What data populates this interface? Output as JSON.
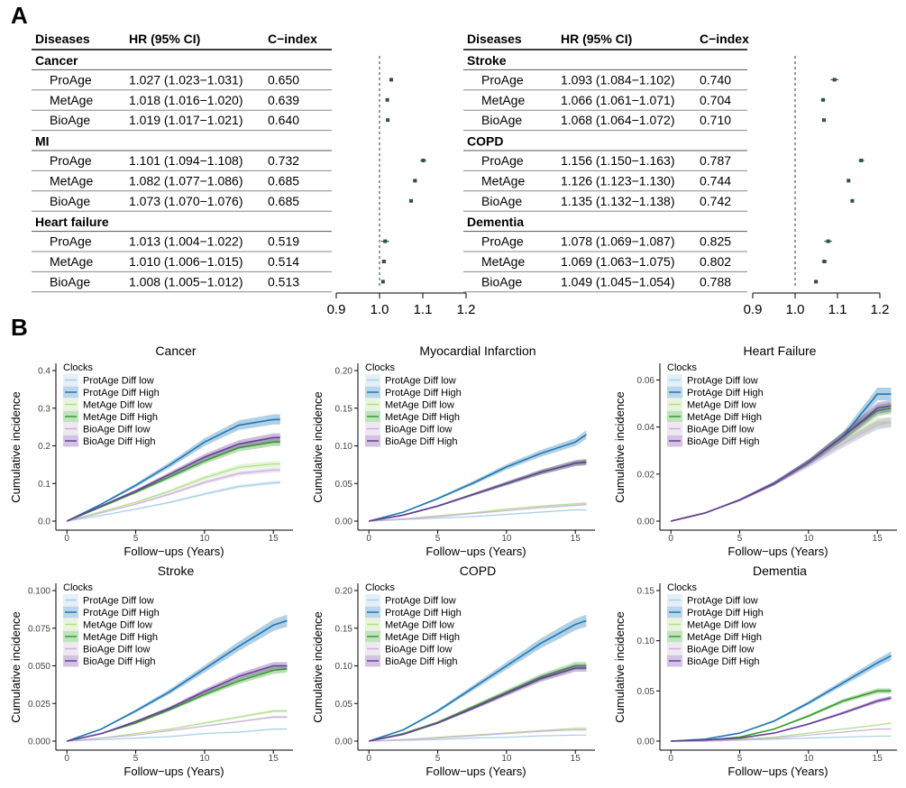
{
  "panel_labels": {
    "a": "A",
    "b": "B"
  },
  "chart_data": [
    {
      "type": "table",
      "name": "forest-left",
      "columns": [
        "Diseases",
        "HR (95% CI)",
        "C−index"
      ],
      "axis_ticks": [
        0.9,
        1.0,
        1.1,
        1.2
      ],
      "reference_line": 1.0,
      "groups": [
        {
          "disease": "Cancer",
          "rows": [
            {
              "clock": "ProAge",
              "hr_text": "1.027 (1.023−1.031)",
              "cindex": "0.650",
              "hr": 1.027,
              "lo": 1.023,
              "hi": 1.031
            },
            {
              "clock": "MetAge",
              "hr_text": "1.018 (1.016−1.020)",
              "cindex": "0.639",
              "hr": 1.018,
              "lo": 1.016,
              "hi": 1.02
            },
            {
              "clock": "BioAge",
              "hr_text": "1.019 (1.017−1.021)",
              "cindex": "0.640",
              "hr": 1.019,
              "lo": 1.017,
              "hi": 1.021
            }
          ]
        },
        {
          "disease": "MI",
          "rows": [
            {
              "clock": "ProAge",
              "hr_text": "1.101 (1.094−1.108)",
              "cindex": "0.732",
              "hr": 1.101,
              "lo": 1.094,
              "hi": 1.108
            },
            {
              "clock": "MetAge",
              "hr_text": "1.082 (1.077−1.086)",
              "cindex": "0.685",
              "hr": 1.082,
              "lo": 1.077,
              "hi": 1.086
            },
            {
              "clock": "BioAge",
              "hr_text": "1.073 (1.070−1.076)",
              "cindex": "0.685",
              "hr": 1.073,
              "lo": 1.07,
              "hi": 1.076
            }
          ]
        },
        {
          "disease": "Heart failure",
          "rows": [
            {
              "clock": "ProAge",
              "hr_text": "1.013 (1.004−1.022)",
              "cindex": "0.519",
              "hr": 1.013,
              "lo": 1.004,
              "hi": 1.022
            },
            {
              "clock": "MetAge",
              "hr_text": "1.010 (1.006−1.015)",
              "cindex": "0.514",
              "hr": 1.01,
              "lo": 1.006,
              "hi": 1.015
            },
            {
              "clock": "BioAge",
              "hr_text": "1.008 (1.005−1.012)",
              "cindex": "0.513",
              "hr": 1.008,
              "lo": 1.005,
              "hi": 1.012
            }
          ]
        }
      ]
    },
    {
      "type": "table",
      "name": "forest-right",
      "columns": [
        "Diseases",
        "HR (95% CI)",
        "C−index"
      ],
      "axis_ticks": [
        0.9,
        1.0,
        1.1,
        1.2
      ],
      "reference_line": 1.0,
      "groups": [
        {
          "disease": "Stroke",
          "rows": [
            {
              "clock": "ProAge",
              "hr_text": "1.093 (1.084−1.102)",
              "cindex": "0.740",
              "hr": 1.093,
              "lo": 1.084,
              "hi": 1.102
            },
            {
              "clock": "MetAge",
              "hr_text": "1.066 (1.061−1.071)",
              "cindex": "0.704",
              "hr": 1.066,
              "lo": 1.061,
              "hi": 1.071
            },
            {
              "clock": "BioAge",
              "hr_text": "1.068 (1.064−1.072)",
              "cindex": "0.710",
              "hr": 1.068,
              "lo": 1.064,
              "hi": 1.072
            }
          ]
        },
        {
          "disease": "COPD",
          "rows": [
            {
              "clock": "ProAge",
              "hr_text": "1.156 (1.150−1.163)",
              "cindex": "0.787",
              "hr": 1.156,
              "lo": 1.15,
              "hi": 1.163
            },
            {
              "clock": "MetAge",
              "hr_text": "1.126 (1.123−1.130)",
              "cindex": "0.744",
              "hr": 1.126,
              "lo": 1.123,
              "hi": 1.13
            },
            {
              "clock": "BioAge",
              "hr_text": "1.135 (1.132−1.138)",
              "cindex": "0.742",
              "hr": 1.135,
              "lo": 1.132,
              "hi": 1.138
            }
          ]
        },
        {
          "disease": "Dementia",
          "rows": [
            {
              "clock": "ProAge",
              "hr_text": "1.078 (1.069−1.087)",
              "cindex": "0.825",
              "hr": 1.078,
              "lo": 1.069,
              "hi": 1.087
            },
            {
              "clock": "MetAge",
              "hr_text": "1.069 (1.063−1.075)",
              "cindex": "0.802",
              "hr": 1.069,
              "lo": 1.063,
              "hi": 1.075
            },
            {
              "clock": "BioAge",
              "hr_text": "1.049 (1.045−1.054)",
              "cindex": "0.788",
              "hr": 1.049,
              "lo": 1.045,
              "hi": 1.054
            }
          ]
        }
      ]
    },
    {
      "type": "line",
      "title": "Cancer",
      "xlabel": "Follow−ups (Years)",
      "ylabel": "Cumulative incidence",
      "legend_title": "Clocks",
      "legend": "top-left",
      "x": [
        0,
        2.5,
        5,
        7.5,
        10,
        12.5,
        15,
        15.5
      ],
      "xticks": [
        0,
        5,
        10,
        15
      ],
      "yticks": [
        "0.0",
        "0.1",
        "0.2",
        "0.3",
        "0.4"
      ],
      "ylim": [
        0,
        0.4
      ],
      "series": [
        {
          "name": "ProtAge Diff low",
          "color": "#a6cee3",
          "values": [
            0,
            0.015,
            0.032,
            0.05,
            0.072,
            0.092,
            0.102,
            0.103
          ]
        },
        {
          "name": "ProtAge Diff High",
          "color": "#1f78b4",
          "values": [
            0,
            0.045,
            0.095,
            0.15,
            0.21,
            0.255,
            0.27,
            0.27
          ]
        },
        {
          "name": "MetAge Diff low",
          "color": "#b2df8a",
          "values": [
            0,
            0.025,
            0.05,
            0.08,
            0.115,
            0.143,
            0.152,
            0.152
          ]
        },
        {
          "name": "MetAge Diff High",
          "color": "#33a02c",
          "values": [
            0,
            0.038,
            0.077,
            0.118,
            0.16,
            0.195,
            0.21,
            0.21
          ]
        },
        {
          "name": "BioAge Diff low",
          "color": "#cab2d6",
          "values": [
            0,
            0.022,
            0.045,
            0.072,
            0.103,
            0.127,
            0.136,
            0.136
          ]
        },
        {
          "name": "BioAge Diff High",
          "color": "#6a3d9a",
          "values": [
            0,
            0.04,
            0.08,
            0.125,
            0.17,
            0.205,
            0.222,
            0.222
          ]
        }
      ]
    },
    {
      "type": "line",
      "title": "Myocardial Infarction",
      "xlabel": "Follow−ups (Years)",
      "ylabel": "Cumulative incidence",
      "legend_title": "Clocks",
      "legend": "top-left",
      "x": [
        0,
        2.5,
        5,
        7.5,
        10,
        12.5,
        15,
        15.8
      ],
      "xticks": [
        0,
        5,
        10,
        15
      ],
      "yticks": [
        "0.00",
        "0.05",
        "0.10",
        "0.15",
        "0.20"
      ],
      "ylim": [
        0,
        0.2
      ],
      "series": [
        {
          "name": "ProtAge Diff low",
          "color": "#a6cee3",
          "values": [
            0,
            0.002,
            0.004,
            0.006,
            0.009,
            0.012,
            0.015,
            0.015
          ]
        },
        {
          "name": "ProtAge Diff High",
          "color": "#1f78b4",
          "values": [
            0,
            0.012,
            0.03,
            0.05,
            0.072,
            0.09,
            0.105,
            0.115
          ]
        },
        {
          "name": "MetAge Diff low",
          "color": "#b2df8a",
          "values": [
            0,
            0.003,
            0.007,
            0.011,
            0.016,
            0.02,
            0.023,
            0.024
          ]
        },
        {
          "name": "MetAge Diff High",
          "color": "#33a02c",
          "values": [
            0,
            0.008,
            0.02,
            0.035,
            0.05,
            0.065,
            0.077,
            0.079
          ]
        },
        {
          "name": "BioAge Diff low",
          "color": "#cab2d6",
          "values": [
            0,
            0.003,
            0.006,
            0.01,
            0.014,
            0.018,
            0.021,
            0.022
          ]
        },
        {
          "name": "BioAge Diff High",
          "color": "#6a3d9a",
          "values": [
            0,
            0.008,
            0.02,
            0.035,
            0.05,
            0.065,
            0.077,
            0.078
          ]
        }
      ]
    },
    {
      "type": "line",
      "title": "Heart Failure",
      "xlabel": "Follow−ups (Years)",
      "ylabel": "Cumulative incidence",
      "legend_title": "Clocks",
      "legend": "top-left",
      "x": [
        0,
        2.5,
        5,
        7.5,
        10,
        12.5,
        15,
        16
      ],
      "xticks": [
        0,
        5,
        10,
        15
      ],
      "yticks": [
        "0.00",
        "0.02",
        "0.04",
        "0.06"
      ],
      "ylim": [
        0,
        0.064
      ],
      "series": [
        {
          "name": "ProtAge Diff low",
          "color": "#a6cee3",
          "values": [
            0,
            0.0035,
            0.009,
            0.016,
            0.024,
            0.033,
            0.041,
            0.042
          ]
        },
        {
          "name": "ProtAge Diff High",
          "color": "#1f78b4",
          "values": [
            0,
            0.0035,
            0.009,
            0.016,
            0.025,
            0.036,
            0.054,
            0.054
          ]
        },
        {
          "name": "MetAge Diff low",
          "color": "#b2df8a",
          "values": [
            0,
            0.0035,
            0.009,
            0.016,
            0.025,
            0.034,
            0.042,
            0.042
          ]
        },
        {
          "name": "MetAge Diff High",
          "color": "#33a02c",
          "values": [
            0,
            0.0035,
            0.009,
            0.016,
            0.025,
            0.036,
            0.047,
            0.048
          ]
        },
        {
          "name": "BioAge Diff low",
          "color": "#cab2d6",
          "values": [
            0,
            0.0035,
            0.009,
            0.016,
            0.024,
            0.033,
            0.041,
            0.042
          ]
        },
        {
          "name": "BioAge Diff High",
          "color": "#6a3d9a",
          "values": [
            0,
            0.0035,
            0.009,
            0.016,
            0.025,
            0.036,
            0.048,
            0.049
          ]
        }
      ]
    },
    {
      "type": "line",
      "title": "Stroke",
      "xlabel": "Follow−ups (Years)",
      "ylabel": "Cumulative incidence",
      "legend_title": "Clocks",
      "legend": "top-left",
      "x": [
        0,
        2.5,
        5,
        7.5,
        10,
        12.5,
        15,
        16
      ],
      "xticks": [
        0,
        5,
        10,
        15
      ],
      "yticks": [
        "0.000",
        "0.025",
        "0.050",
        "0.075",
        "0.100"
      ],
      "ylim": [
        0,
        0.1
      ],
      "series": [
        {
          "name": "ProtAge Diff low",
          "color": "#a6cee3",
          "values": [
            0,
            0.001,
            0.002,
            0.003,
            0.005,
            0.006,
            0.008,
            0.008
          ]
        },
        {
          "name": "ProtAge Diff High",
          "color": "#1f78b4",
          "values": [
            0,
            0.008,
            0.02,
            0.033,
            0.048,
            0.063,
            0.077,
            0.08
          ]
        },
        {
          "name": "MetAge Diff low",
          "color": "#b2df8a",
          "values": [
            0,
            0.002,
            0.005,
            0.008,
            0.012,
            0.016,
            0.02,
            0.02
          ]
        },
        {
          "name": "MetAge Diff High",
          "color": "#33a02c",
          "values": [
            0,
            0.005,
            0.012,
            0.021,
            0.031,
            0.04,
            0.047,
            0.048
          ]
        },
        {
          "name": "BioAge Diff low",
          "color": "#cab2d6",
          "values": [
            0,
            0.002,
            0.004,
            0.007,
            0.01,
            0.013,
            0.016,
            0.016
          ]
        },
        {
          "name": "BioAge Diff High",
          "color": "#6a3d9a",
          "values": [
            0,
            0.005,
            0.013,
            0.022,
            0.033,
            0.043,
            0.05,
            0.05
          ]
        }
      ]
    },
    {
      "type": "line",
      "title": "COPD",
      "xlabel": "Follow−ups (Years)",
      "ylabel": "Cumulative incidence",
      "legend_title": "Clocks",
      "legend": "top-left",
      "x": [
        0,
        2.5,
        5,
        7.5,
        10,
        12.5,
        15,
        15.8
      ],
      "xticks": [
        0,
        5,
        10,
        15
      ],
      "yticks": [
        "0.00",
        "0.05",
        "0.10",
        "0.15",
        "0.20"
      ],
      "ylim": [
        0,
        0.2
      ],
      "series": [
        {
          "name": "ProtAge Diff low",
          "color": "#a6cee3",
          "values": [
            0,
            0.001,
            0.002,
            0.004,
            0.005,
            0.007,
            0.008,
            0.008
          ]
        },
        {
          "name": "ProtAge Diff High",
          "color": "#1f78b4",
          "values": [
            0,
            0.015,
            0.04,
            0.07,
            0.1,
            0.13,
            0.155,
            0.16
          ]
        },
        {
          "name": "MetAge Diff low",
          "color": "#b2df8a",
          "values": [
            0,
            0.002,
            0.005,
            0.008,
            0.011,
            0.014,
            0.017,
            0.017
          ]
        },
        {
          "name": "MetAge Diff High",
          "color": "#33a02c",
          "values": [
            0,
            0.01,
            0.025,
            0.045,
            0.065,
            0.085,
            0.1,
            0.1
          ]
        },
        {
          "name": "BioAge Diff low",
          "color": "#cab2d6",
          "values": [
            0,
            0.002,
            0.004,
            0.007,
            0.01,
            0.013,
            0.015,
            0.015
          ]
        },
        {
          "name": "BioAge Diff High",
          "color": "#6a3d9a",
          "values": [
            0,
            0.009,
            0.024,
            0.043,
            0.063,
            0.083,
            0.097,
            0.097
          ]
        }
      ]
    },
    {
      "type": "line",
      "title": "Dementia",
      "xlabel": "Follow−ups (Years)",
      "ylabel": "Cumulative incidence",
      "legend_title": "Clocks",
      "legend": "top-left",
      "x": [
        0,
        2.5,
        5,
        7.5,
        10,
        12.5,
        15,
        16
      ],
      "xticks": [
        0,
        5,
        10,
        15
      ],
      "yticks": [
        "0.00",
        "0.05",
        "0.10",
        "0.15"
      ],
      "ylim": [
        0,
        0.15
      ],
      "series": [
        {
          "name": "ProtAge Diff low",
          "color": "#a6cee3",
          "values": [
            0,
            0,
            0.001,
            0.002,
            0.003,
            0.004,
            0.005,
            0.005
          ]
        },
        {
          "name": "ProtAge Diff High",
          "color": "#1f78b4",
          "values": [
            0,
            0.002,
            0.008,
            0.02,
            0.038,
            0.058,
            0.078,
            0.085
          ]
        },
        {
          "name": "MetAge Diff low",
          "color": "#b2df8a",
          "values": [
            0,
            0,
            0.002,
            0.004,
            0.008,
            0.012,
            0.016,
            0.018
          ]
        },
        {
          "name": "MetAge Diff High",
          "color": "#33a02c",
          "values": [
            0,
            0.001,
            0.004,
            0.012,
            0.025,
            0.04,
            0.05,
            0.05
          ]
        },
        {
          "name": "BioAge Diff low",
          "color": "#cab2d6",
          "values": [
            0,
            0,
            0.001,
            0.003,
            0.006,
            0.009,
            0.012,
            0.012
          ]
        },
        {
          "name": "BioAge Diff High",
          "color": "#6a3d9a",
          "values": [
            0,
            0.001,
            0.003,
            0.008,
            0.017,
            0.028,
            0.04,
            0.043
          ]
        }
      ]
    }
  ]
}
